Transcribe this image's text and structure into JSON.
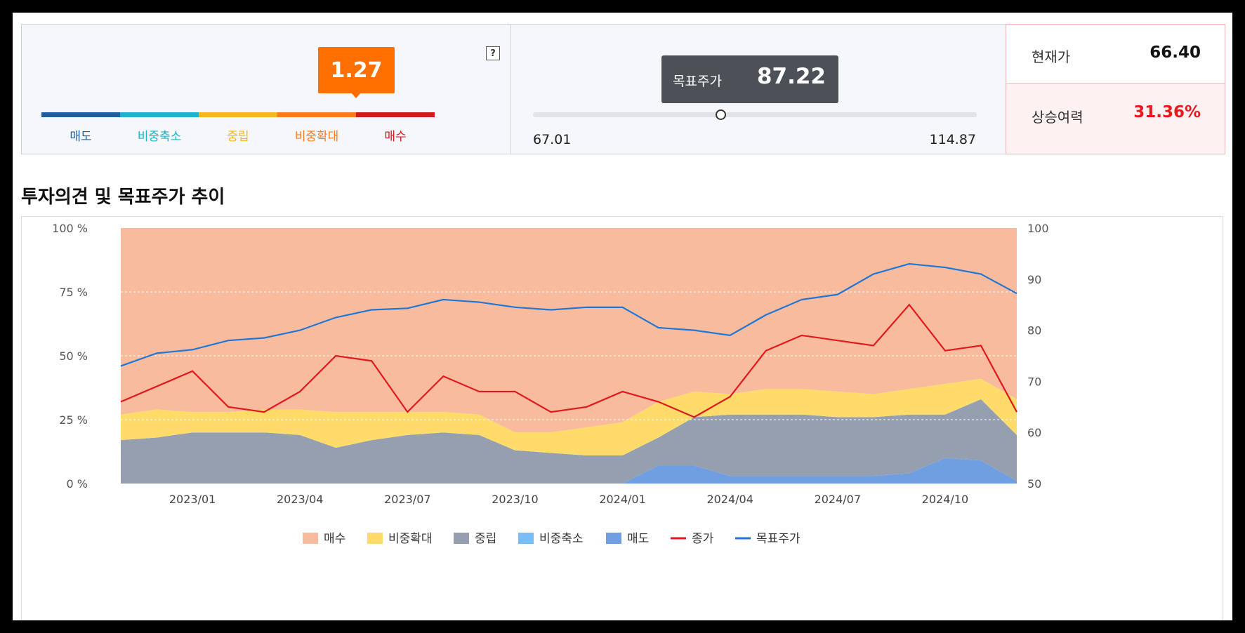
{
  "opinion_score": {
    "value": "1.27",
    "position_fraction": 0.8,
    "help_icon": "?",
    "scale": [
      {
        "label": "매도",
        "color": "#1f5fa0"
      },
      {
        "label": "비중축소",
        "color": "#1ab3d0"
      },
      {
        "label": "중립",
        "color": "#f6b71b"
      },
      {
        "label": "비중확대",
        "color": "#ff7b1c"
      },
      {
        "label": "매수",
        "color": "#d31919"
      }
    ]
  },
  "target_price": {
    "label": "목표주가",
    "value": "87.22",
    "min": "67.01",
    "max": "114.87",
    "numeric_value": 87.22,
    "numeric_min": 67.01,
    "numeric_max": 114.87
  },
  "price_summary": {
    "current_label": "현재가",
    "current_value": "66.40",
    "upside_label": "상승여력",
    "upside_value": "31.36%"
  },
  "section_title": "투자의견 및 목표주가 추이",
  "chart_data": {
    "type": "area",
    "x": [
      "2022-11",
      "2022-12",
      "2023-01",
      "2023-02",
      "2023-03",
      "2023-04",
      "2023-05",
      "2023-06",
      "2023-07",
      "2023-08",
      "2023-09",
      "2023-10",
      "2023-11",
      "2023-12",
      "2024-01",
      "2024-02",
      "2024-03",
      "2024-04",
      "2024-05",
      "2024-06",
      "2024-07",
      "2024-08",
      "2024-09",
      "2024-10",
      "2024-11",
      "2024-12"
    ],
    "x_ticks": [
      "2023/01",
      "2023/04",
      "2023/07",
      "2023/10",
      "2024/01",
      "2024/04",
      "2024/07",
      "2024/10"
    ],
    "y_left_ticks": [
      "0 %",
      "25 %",
      "50 %",
      "75 %",
      "100 %"
    ],
    "y_left_range": [
      0,
      100
    ],
    "y_right_ticks": [
      "50",
      "60",
      "70",
      "80",
      "90",
      "100"
    ],
    "y_right_range": [
      50,
      100
    ],
    "grid": "dashed horizontal at 25/50/75",
    "legend": "bottom",
    "stacked_series": [
      {
        "name": "매도",
        "color": "#6f9fe0",
        "values": [
          0,
          0,
          0,
          0,
          0,
          0,
          0,
          0,
          0,
          0,
          0,
          0,
          0,
          0,
          0,
          7,
          7,
          3,
          3,
          3,
          3,
          3,
          4,
          10,
          9,
          1
        ]
      },
      {
        "name": "비중축소",
        "color": "#78bdf5",
        "values": [
          0,
          0,
          0,
          0,
          0,
          0,
          0,
          0,
          0,
          0,
          0,
          0,
          0,
          0,
          0,
          0,
          0,
          0,
          0,
          0,
          0,
          0,
          0,
          0,
          0,
          0
        ]
      },
      {
        "name": "중립",
        "color": "#969fb0",
        "values": [
          17,
          18,
          20,
          20,
          20,
          19,
          14,
          17,
          19,
          20,
          19,
          13,
          12,
          11,
          11,
          11,
          19,
          24,
          24,
          24,
          23,
          23,
          23,
          17,
          24,
          18
        ]
      },
      {
        "name": "비중확대",
        "color": "#ffdc6a",
        "values": [
          10,
          11,
          8,
          8,
          9,
          10,
          14,
          11,
          9,
          8,
          8,
          7,
          8,
          11,
          13,
          14,
          10,
          8,
          10,
          10,
          10,
          9,
          10,
          12,
          8,
          14
        ]
      },
      {
        "name": "매수",
        "color": "#f9bb9d",
        "values": [
          73,
          71,
          72,
          72,
          71,
          71,
          72,
          72,
          72,
          72,
          73,
          80,
          80,
          78,
          76,
          68,
          64,
          65,
          63,
          63,
          64,
          65,
          63,
          61,
          59,
          67
        ]
      }
    ],
    "line_series": [
      {
        "name": "종가",
        "color": "#e0191c",
        "values": [
          66,
          69,
          72,
          65,
          64,
          68,
          75,
          74,
          64,
          71,
          68,
          68,
          64,
          65,
          68,
          66,
          63,
          67,
          76,
          79,
          78,
          77,
          85,
          76,
          77,
          64
        ]
      },
      {
        "name": "목표주가",
        "color": "#1e77d6",
        "values": [
          73,
          75.5,
          76.2,
          78,
          78.5,
          80,
          82.5,
          84,
          84.3,
          86,
          85.5,
          84.5,
          84,
          84.5,
          84.5,
          80.5,
          80,
          79,
          83,
          86,
          87,
          91,
          93,
          92.3,
          91,
          87.2
        ]
      }
    ]
  }
}
